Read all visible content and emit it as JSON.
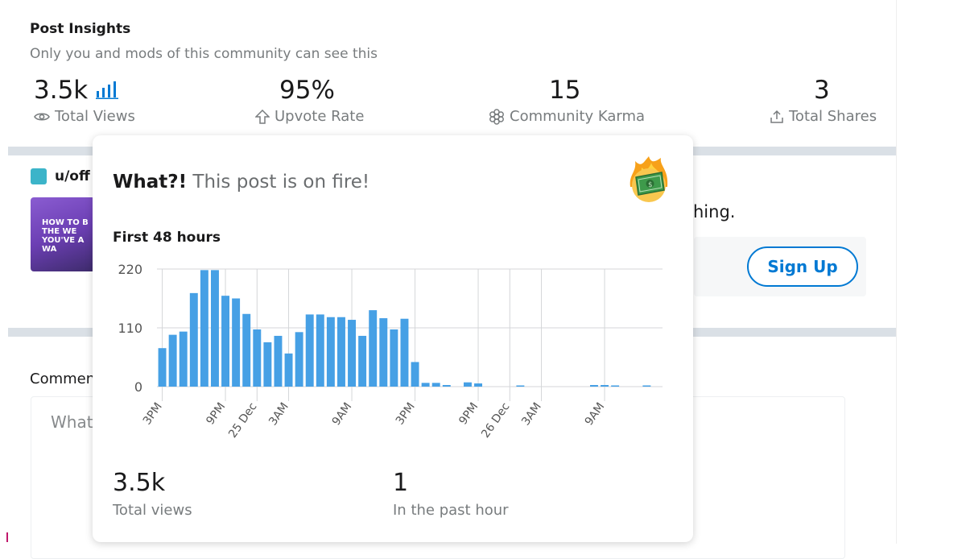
{
  "insights": {
    "title": "Post Insights",
    "subtitle": "Only you and mods of this community can see this",
    "stats": [
      {
        "value": "3.5k",
        "label": "Total Views",
        "icon": "eye-icon"
      },
      {
        "value": "95%",
        "label": "Upvote Rate",
        "icon": "upvote-arrow-icon"
      },
      {
        "value": "15",
        "label": "Community Karma",
        "icon": "karma-flower-icon"
      },
      {
        "value": "3",
        "label": "Total Shares",
        "icon": "share-icon"
      }
    ]
  },
  "post": {
    "username": "u/off",
    "thumb_text": "HOW TO B\nTHE WE\nYOU'VE A\nWA",
    "partial_text": "hing."
  },
  "signup": {
    "label": "Sign Up"
  },
  "comments": {
    "label": "Commen",
    "placeholder": "What"
  },
  "popup": {
    "title_bold": "What?!",
    "title_rest": " This post is on fire!",
    "chart_title": "First 48 hours",
    "total_views_value": "3.5k",
    "total_views_label": "Total views",
    "past_hour_value": "1",
    "past_hour_label": "In the past hour"
  },
  "colors": {
    "accent": "#0079d3",
    "bar": "#46a0e5",
    "divider": "#dae0e6"
  },
  "chart_data": {
    "type": "bar",
    "title": "First 48 hours",
    "ylim": [
      0,
      220
    ],
    "yticks": [
      0,
      110,
      220
    ],
    "xtick_labels": [
      {
        "label": "3PM",
        "index": 0
      },
      {
        "label": "9PM",
        "index": 6
      },
      {
        "label": "25 Dec",
        "index": 9
      },
      {
        "label": "3AM",
        "index": 12
      },
      {
        "label": "9AM",
        "index": 18
      },
      {
        "label": "3PM",
        "index": 24
      },
      {
        "label": "9PM",
        "index": 30
      },
      {
        "label": "26 Dec",
        "index": 33
      },
      {
        "label": "3AM",
        "index": 36
      },
      {
        "label": "9AM",
        "index": 42
      }
    ],
    "values": [
      72,
      97,
      103,
      175,
      218,
      218,
      170,
      165,
      136,
      107,
      83,
      95,
      62,
      102,
      135,
      135,
      130,
      130,
      125,
      95,
      143,
      128,
      107,
      127,
      46,
      7,
      7,
      3,
      0,
      8,
      6,
      0,
      0,
      0,
      2,
      0,
      0,
      0,
      0,
      0,
      0,
      3,
      3,
      2,
      0,
      0,
      2,
      0
    ],
    "grid": true
  }
}
